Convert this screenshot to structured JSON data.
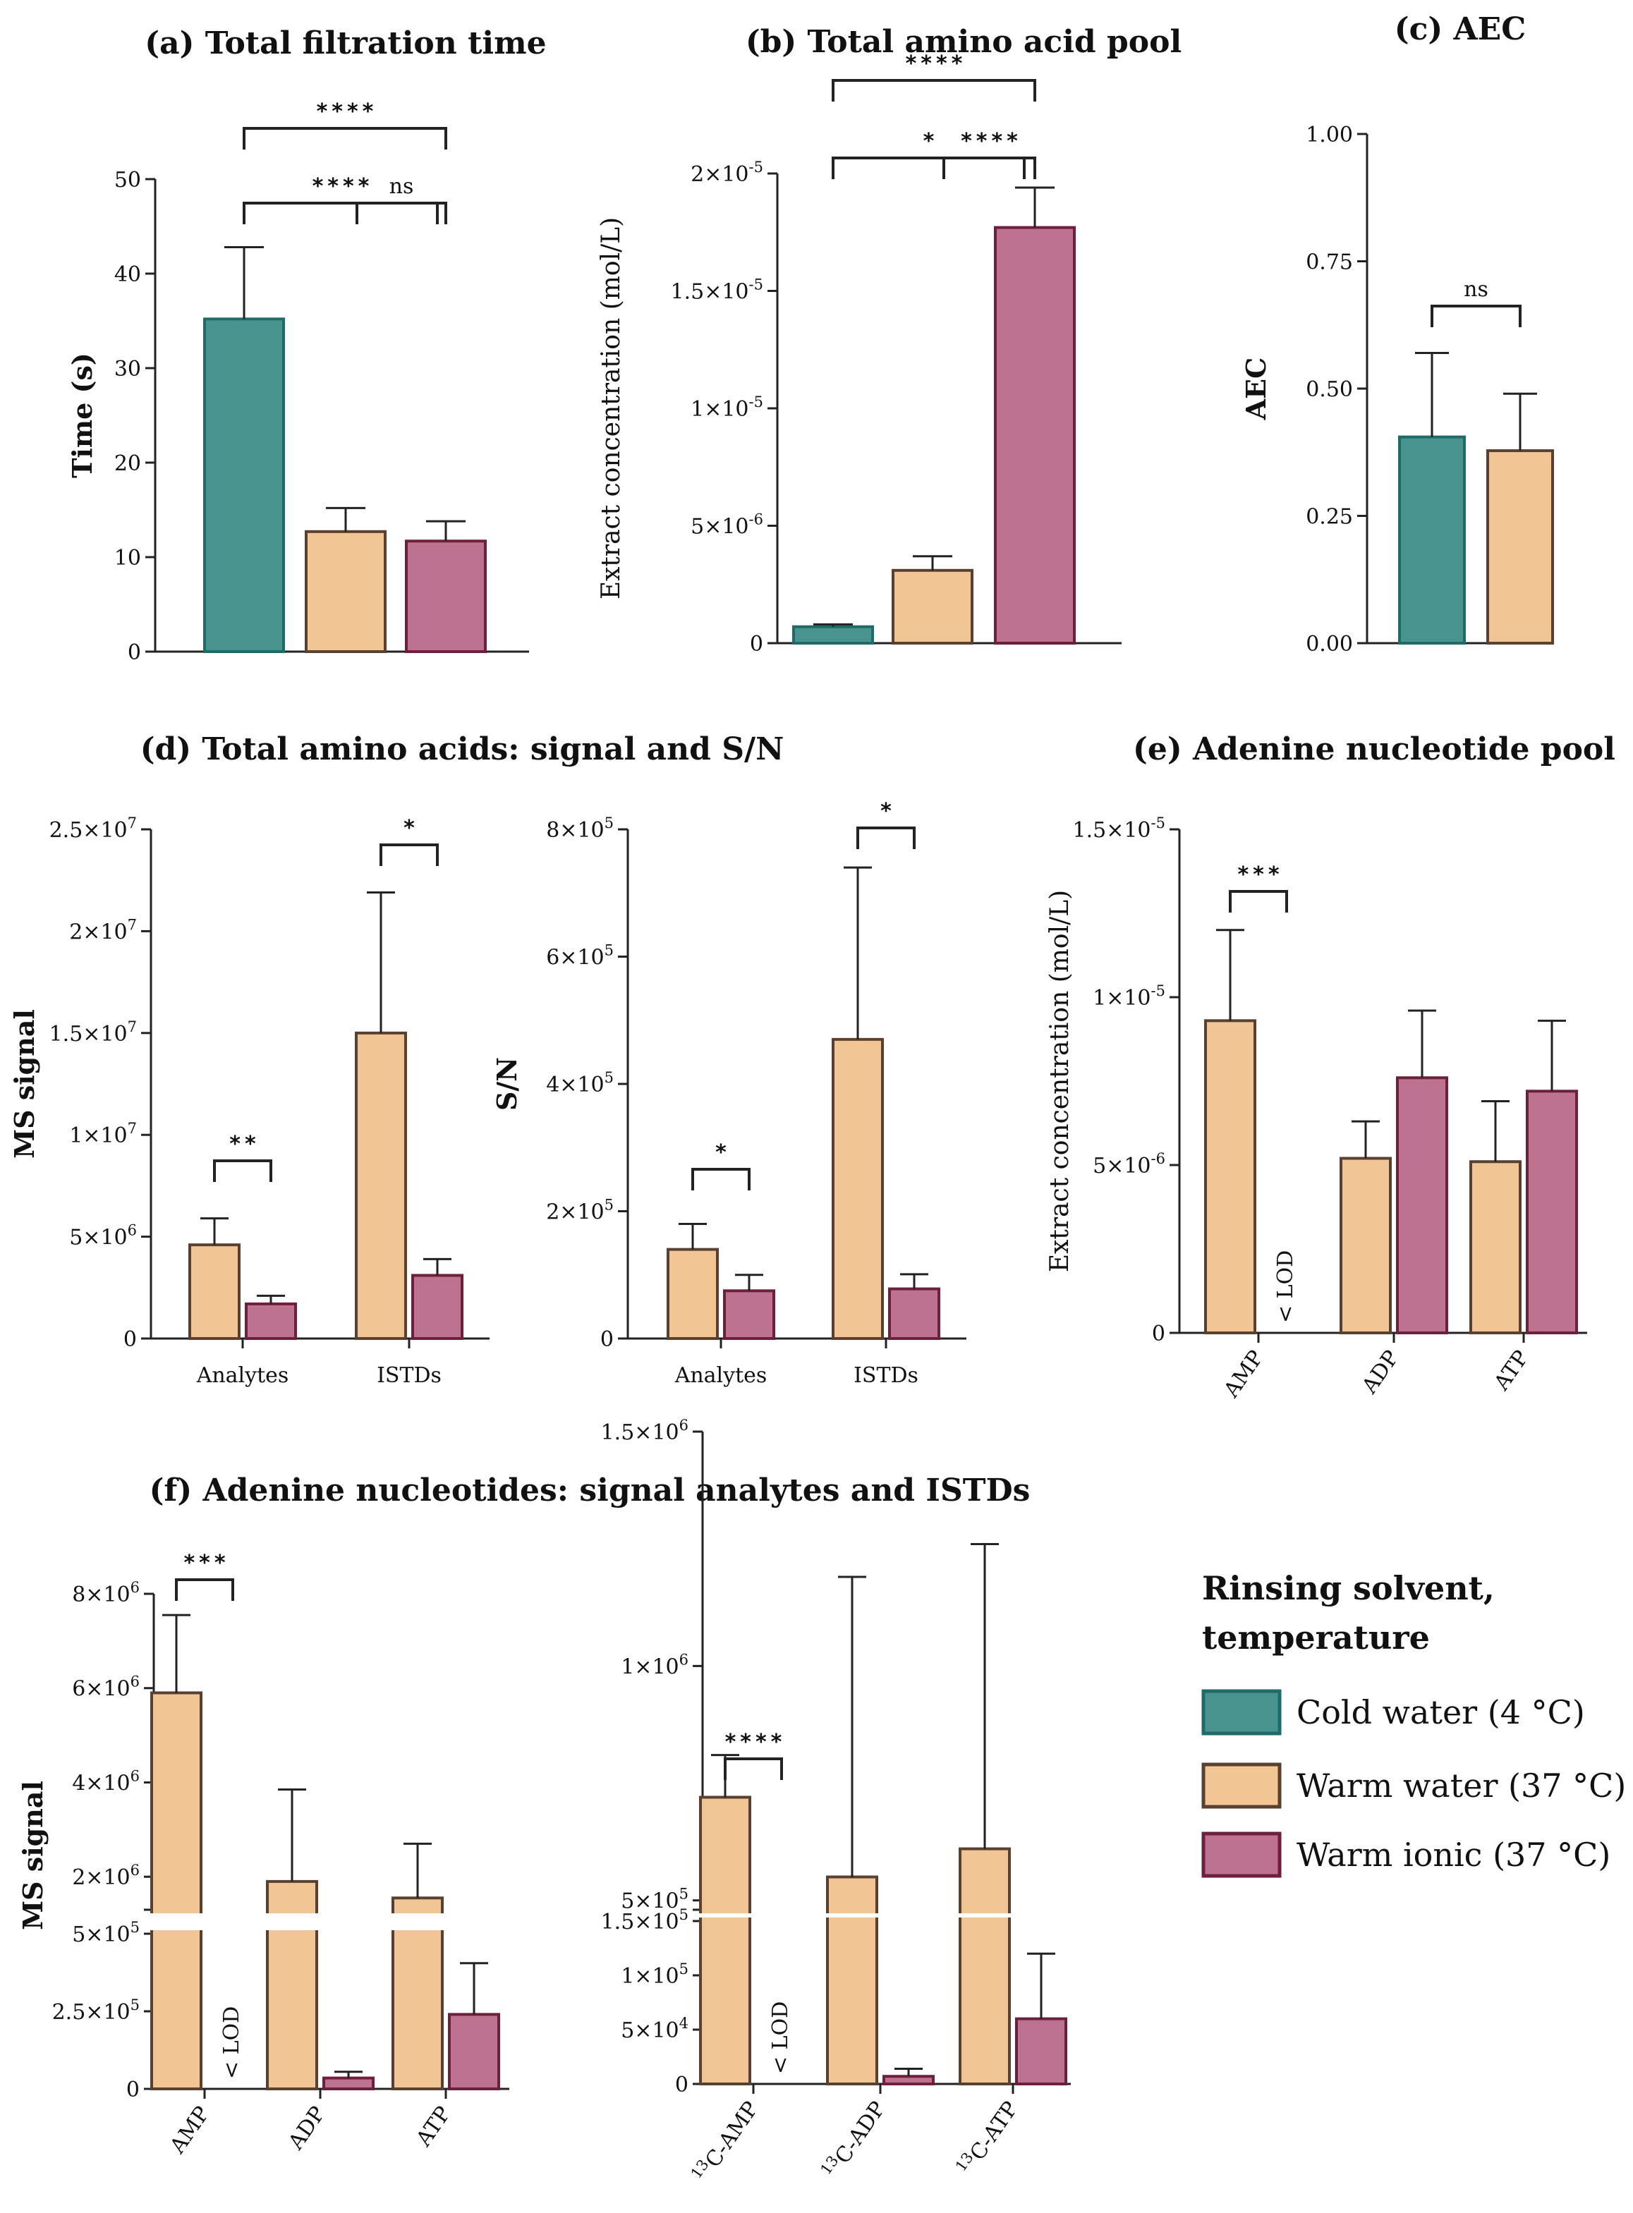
{
  "colors": {
    "cold_fill": "#4a9490",
    "cold_stroke": "#1f6b68",
    "warm_fill": "#f2c594",
    "warm_stroke": "#5a4030",
    "ionic_fill": "#bd738f",
    "ionic_stroke": "#6e1f3c"
  },
  "legend": {
    "title_line1": "Rinsing solvent,",
    "title_line2": "temperature",
    "items": [
      {
        "label": "Cold water (4 °C)",
        "color": "#4a9490"
      },
      {
        "label": "Warm water (37 °C)",
        "color": "#f2c594"
      },
      {
        "label": "Warm ionic (37 °C)",
        "color": "#bd738f"
      }
    ]
  },
  "lod_label": "< LOD",
  "chart_data": [
    {
      "id": "a",
      "type": "bar",
      "title": "(a) Total filtration time",
      "ylabel": "Time (s)",
      "ylim": [
        0,
        50
      ],
      "yticks": [
        0,
        10,
        20,
        30,
        40,
        50
      ],
      "ytick_labels": [
        "0",
        "10",
        "20",
        "30",
        "40",
        "50"
      ],
      "series": [
        {
          "name": "Cold water (4 °C)",
          "value": 35.2,
          "error": 7.6
        },
        {
          "name": "Warm water (37 °C)",
          "value": 12.7,
          "error": 2.5
        },
        {
          "name": "Warm ionic (37 °C)",
          "value": 11.7,
          "error": 2.1
        }
      ],
      "significance": [
        {
          "from": 0,
          "to": 1,
          "label": "****"
        },
        {
          "from": 1,
          "to": 2,
          "label": "ns"
        },
        {
          "from": 0,
          "to": 2,
          "label": "****"
        }
      ]
    },
    {
      "id": "b",
      "type": "bar",
      "title": "(b) Total amino acid pool",
      "ylabel": "Extract concentration (mol/L)",
      "ylim": [
        0,
        2e-05
      ],
      "yticks": [
        0,
        5e-06,
        1e-05,
        1.5e-05,
        2e-05
      ],
      "ytick_labels": [
        "0",
        "5×10-6",
        "1×10-5",
        "1.5×10-5",
        "2×10-5"
      ],
      "series": [
        {
          "name": "Cold water (4 °C)",
          "value": 7e-07,
          "error": 1e-07
        },
        {
          "name": "Warm water (37 °C)",
          "value": 3.1e-06,
          "error": 6e-07
        },
        {
          "name": "Warm ionic (37 °C)",
          "value": 1.77e-05,
          "error": 1.7e-06
        }
      ],
      "significance": [
        {
          "from": 0,
          "to": 1,
          "label": "*"
        },
        {
          "from": 1,
          "to": 2,
          "label": "****"
        },
        {
          "from": 0,
          "to": 2,
          "label": "****"
        }
      ]
    },
    {
      "id": "c",
      "type": "bar",
      "title": "(c) AEC",
      "ylabel": "AEC",
      "ylim": [
        0,
        1
      ],
      "yticks": [
        0,
        0.25,
        0.5,
        0.75,
        1.0
      ],
      "ytick_labels": [
        "0.00",
        "0.25",
        "0.50",
        "0.75",
        "1.00"
      ],
      "series": [
        {
          "name": "Cold water (4 °C)",
          "value": 0.405,
          "error": 0.165
        },
        {
          "name": "Warm water (37 °C)",
          "value": 0.378,
          "error": 0.112
        }
      ],
      "significance": [
        {
          "from": 0,
          "to": 1,
          "label": "ns"
        }
      ]
    },
    {
      "id": "d",
      "type": "bar",
      "title": "(d) Total amino acids: signal and S/N",
      "panels": [
        {
          "ylabel": "MS signal",
          "ylim": [
            0,
            25000000.0
          ],
          "yticks": [
            0,
            5000000.0,
            10000000.0,
            15000000.0,
            20000000.0,
            25000000.0
          ],
          "ytick_labels": [
            "0",
            "5×106",
            "1×107",
            "1.5×107",
            "2×107",
            "2.5×107"
          ],
          "categories": [
            "Analytes",
            "ISTDs"
          ],
          "series": [
            {
              "name": "Warm water (37 °C)",
              "values": [
                4600000.0,
                15000000.0
              ],
              "errors": [
                1300000.0,
                6900000.0
              ]
            },
            {
              "name": "Warm ionic (37 °C)",
              "values": [
                1700000.0,
                3100000.0
              ],
              "errors": [
                400000.0,
                800000.0
              ]
            }
          ],
          "significance": [
            {
              "category": 0,
              "label": "**"
            },
            {
              "category": 1,
              "label": "*"
            }
          ]
        },
        {
          "ylabel": "S/N",
          "ylim": [
            0,
            800000.0
          ],
          "yticks": [
            0,
            200000.0,
            400000.0,
            600000.0,
            800000.0
          ],
          "ytick_labels": [
            "0",
            "2×105",
            "4×105",
            "6×105",
            "8×105"
          ],
          "categories": [
            "Analytes",
            "ISTDs"
          ],
          "series": [
            {
              "name": "Warm water (37 °C)",
              "values": [
                140000.0,
                470000.0
              ],
              "errors": [
                40000.0,
                270000.0
              ]
            },
            {
              "name": "Warm ionic (37 °C)",
              "values": [
                75000.0,
                78000.0
              ],
              "errors": [
                25000.0,
                23000.0
              ]
            }
          ],
          "significance": [
            {
              "category": 0,
              "label": "*"
            },
            {
              "category": 1,
              "label": "*"
            }
          ]
        }
      ]
    },
    {
      "id": "e",
      "type": "bar",
      "title": "(e) Adenine nucleotide pool",
      "ylabel": "Extract concentration (mol/L)",
      "ylim": [
        0,
        1.5e-05
      ],
      "yticks": [
        0,
        5e-06,
        1e-05,
        1.5e-05
      ],
      "ytick_labels": [
        "0",
        "5×10-6",
        "1×10-5",
        "1.5×10-5"
      ],
      "categories": [
        "AMP",
        "ADP",
        "ATP"
      ],
      "series": [
        {
          "name": "Warm water (37 °C)",
          "values": [
            9.3e-06,
            5.2e-06,
            5.1e-06
          ],
          "errors": [
            2.7e-06,
            1.1e-06,
            1.8e-06
          ]
        },
        {
          "name": "Warm ionic (37 °C)",
          "values": [
            null,
            7.6e-06,
            7.2e-06
          ],
          "errors": [
            null,
            2e-06,
            2.1e-06
          ]
        }
      ],
      "significance": [
        {
          "category": 0,
          "label": "***"
        }
      ]
    },
    {
      "id": "f",
      "type": "bar",
      "title": "(f) Adenine nucleotides: signal analytes and ISTDs",
      "panels": [
        {
          "ylabel": "MS signal",
          "axis_break": true,
          "ylim_lower": [
            0,
            500000.0
          ],
          "ylim_upper": [
            1300000.0,
            8000000.0
          ],
          "yticks_lower": [
            0,
            250000.0,
            500000.0
          ],
          "ytick_labels_lower": [
            "0",
            "2.5×105",
            "5×105"
          ],
          "yticks_upper": [
            2000000.0,
            4000000.0,
            6000000.0,
            8000000.0
          ],
          "ytick_labels_upper": [
            "2×106",
            "4×106",
            "6×106",
            "8×106"
          ],
          "categories": [
            "AMP",
            "ADP",
            "ATP"
          ],
          "series": [
            {
              "name": "Warm water (37 °C)",
              "values": [
                5900000.0,
                1900000.0,
                1550000.0
              ],
              "errors": [
                1650000.0,
                1950000.0,
                1150000.0
              ]
            },
            {
              "name": "Warm ionic (37 °C)",
              "values": [
                null,
                35000.0,
                240000.0
              ],
              "errors": [
                null,
                20000.0,
                165000.0
              ]
            }
          ],
          "significance": [
            {
              "category": 0,
              "label": "***"
            }
          ]
        },
        {
          "ylabel": "",
          "axis_break": true,
          "ylim_lower": [
            0,
            150000.0
          ],
          "ylim_upper": [
            480000.0,
            1500000.0
          ],
          "yticks_lower": [
            0,
            50000.0,
            100000.0,
            150000.0
          ],
          "ytick_labels_lower": [
            "0",
            "5×104",
            "1×105",
            "1.5×105"
          ],
          "yticks_upper": [
            500000.0,
            1000000.0,
            1500000.0
          ],
          "ytick_labels_upper": [
            "5×105",
            "1×106",
            "1.5×106"
          ],
          "categories": [
            "13C-AMP",
            "13C-ADP",
            "13C-ATP"
          ],
          "series": [
            {
              "name": "Warm water (37 °C)",
              "values": [
                720000.0,
                550000.0,
                610000.0
              ],
              "errors": [
                90000.0,
                640000.0,
                650000.0
              ]
            },
            {
              "name": "Warm ionic (37 °C)",
              "values": [
                null,
                7000.0,
                60000.0
              ],
              "errors": [
                null,
                7000.0,
                60000.0
              ]
            }
          ],
          "significance": [
            {
              "category": 0,
              "label": "****"
            }
          ]
        }
      ]
    }
  ]
}
